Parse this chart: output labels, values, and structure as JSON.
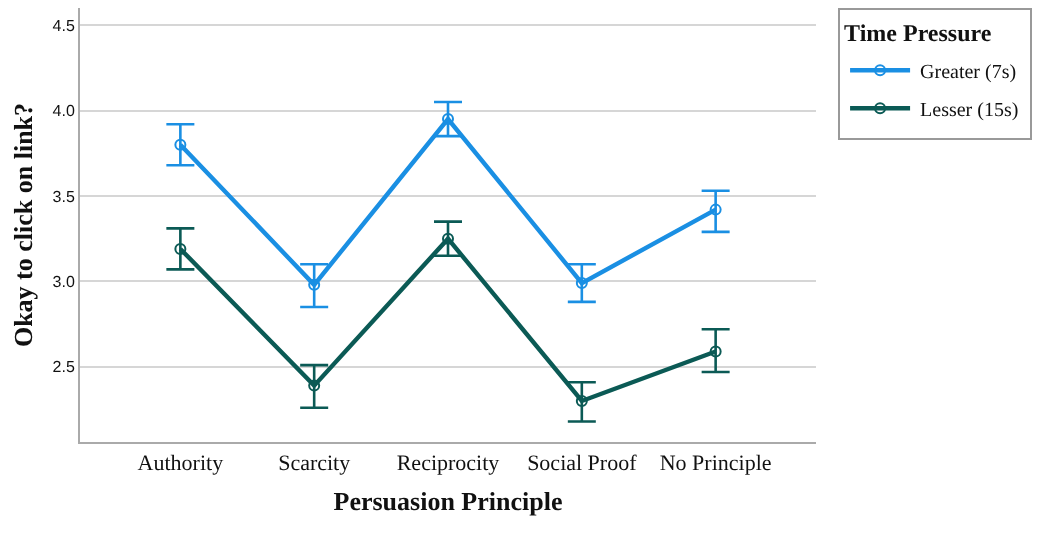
{
  "chart_data": {
    "type": "line",
    "xlabel": "Persuasion Principle",
    "ylabel": "Okay to click on link?",
    "legend_title": "Time Pressure",
    "categories": [
      "Authority",
      "Scarcity",
      "Reciprocity",
      "Social Proof",
      "No Principle"
    ],
    "series": [
      {
        "name": "Greater (7s)",
        "color": "#1a8fe3",
        "values": [
          3.8,
          2.98,
          3.95,
          2.99,
          3.42
        ],
        "errors": [
          [
            3.68,
            3.92
          ],
          [
            2.85,
            3.1
          ],
          [
            3.85,
            4.05
          ],
          [
            2.88,
            3.1
          ],
          [
            3.29,
            3.53
          ]
        ]
      },
      {
        "name": "Lesser (15s)",
        "color": "#0b5a55",
        "values": [
          3.19,
          2.39,
          3.25,
          2.3,
          2.59
        ],
        "errors": [
          [
            3.07,
            3.31
          ],
          [
            2.26,
            2.51
          ],
          [
            3.15,
            3.35
          ],
          [
            2.18,
            2.41
          ],
          [
            2.47,
            2.72
          ]
        ]
      }
    ],
    "ylim": [
      2.06,
      4.6
    ],
    "yticks": [
      {
        "value": 2.5,
        "label": "2.5"
      },
      {
        "value": 3.0,
        "label": "3.0"
      },
      {
        "value": 3.5,
        "label": "3.5"
      },
      {
        "value": 4.0,
        "label": "4.0"
      },
      {
        "value": 4.5,
        "label": "4.5"
      }
    ],
    "grid": "y",
    "legend": "top right",
    "marker": "circle",
    "line_style": "solid"
  }
}
